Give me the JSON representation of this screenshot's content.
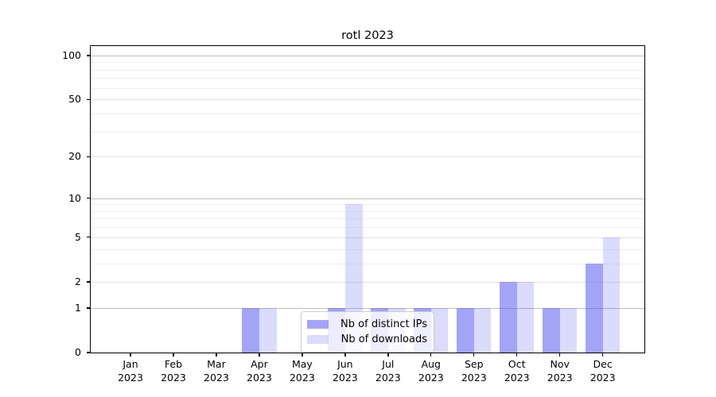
{
  "chart_data": {
    "type": "bar",
    "title": "rotl 2023",
    "categories": [
      {
        "month": "Jan",
        "year": "2023"
      },
      {
        "month": "Feb",
        "year": "2023"
      },
      {
        "month": "Mar",
        "year": "2023"
      },
      {
        "month": "Apr",
        "year": "2023"
      },
      {
        "month": "May",
        "year": "2023"
      },
      {
        "month": "Jun",
        "year": "2023"
      },
      {
        "month": "Jul",
        "year": "2023"
      },
      {
        "month": "Aug",
        "year": "2023"
      },
      {
        "month": "Sep",
        "year": "2023"
      },
      {
        "month": "Oct",
        "year": "2023"
      },
      {
        "month": "Nov",
        "year": "2023"
      },
      {
        "month": "Dec",
        "year": "2023"
      }
    ],
    "series": [
      {
        "name": "Nb of distinct IPs",
        "color": "rgba(90,90,240,0.55)",
        "values": [
          0,
          0,
          0,
          1,
          0,
          1,
          1,
          1,
          1,
          2,
          1,
          3
        ]
      },
      {
        "name": "Nb of downloads",
        "color": "rgba(90,90,240,0.22)",
        "values": [
          0,
          0,
          0,
          1,
          0,
          9,
          1,
          1,
          1,
          2,
          1,
          5
        ]
      }
    ],
    "yscale": "log1p",
    "yticks": [
      0,
      1,
      2,
      5,
      10,
      20,
      50,
      100
    ],
    "minor_yticks": [
      3,
      4,
      6,
      7,
      8,
      9,
      30,
      40,
      60,
      70,
      80,
      90
    ],
    "ylim": [
      0,
      116
    ],
    "grid": "on",
    "legend_position": "lower center",
    "xlabel": "",
    "ylabel": ""
  }
}
